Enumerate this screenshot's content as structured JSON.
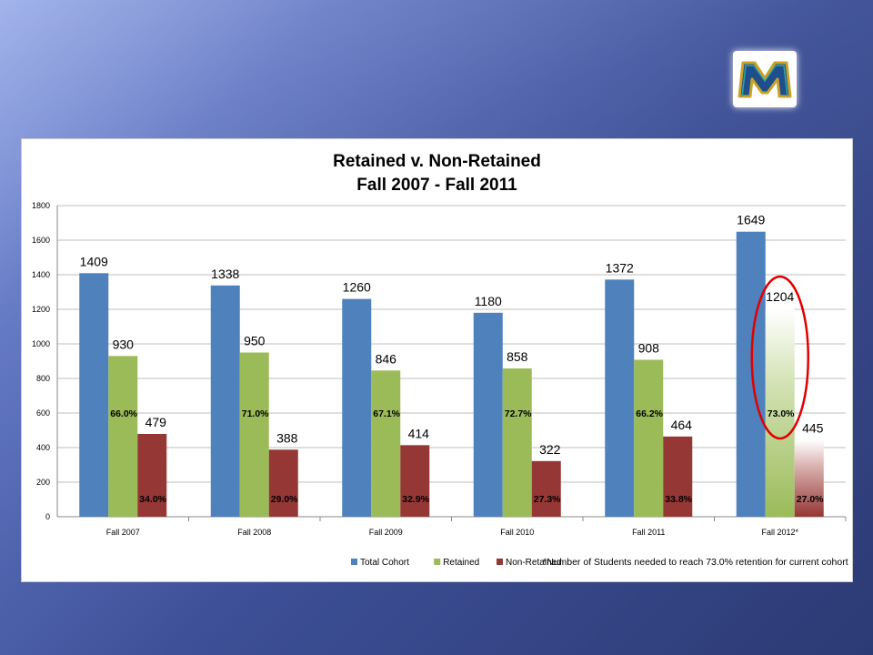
{
  "colors": {
    "total": "#4f81bd",
    "retained": "#9bbb59",
    "non_retained": "#953735",
    "highlight": "#e00000"
  },
  "logo": {
    "letter": "M",
    "icon": "school-logo-icon"
  },
  "chart_data": {
    "type": "bar",
    "title": "Retained v. Non-Retained",
    "subtitle": "Fall 2007 - Fall 2011",
    "categories": [
      "Fall 2007",
      "Fall 2008",
      "Fall 2009",
      "Fall 2010",
      "Fall 2011",
      "Fall 2012*"
    ],
    "ylim": [
      0,
      1800
    ],
    "yticks": [
      0,
      200,
      400,
      600,
      800,
      1000,
      1200,
      1400,
      1600,
      1800
    ],
    "grid": true,
    "legend_position": "bottom",
    "series": [
      {
        "name": "Total Cohort",
        "values": [
          1409,
          1338,
          1260,
          1180,
          1372,
          1649
        ]
      },
      {
        "name": "Retained",
        "values": [
          930,
          950,
          846,
          858,
          908,
          1204
        ]
      },
      {
        "name": "Non-Retained",
        "values": [
          479,
          388,
          414,
          322,
          464,
          445
        ]
      }
    ],
    "value_labels": {
      "Total Cohort": [
        "1409",
        "1338",
        "1260",
        "1180",
        "1372",
        "1649"
      ],
      "Retained": [
        "930",
        "950",
        "846",
        "858",
        "908",
        "1204"
      ],
      "Non-Retained": [
        "479",
        "388",
        "414",
        "322",
        "464",
        "445"
      ]
    },
    "retained_pct_labels": [
      "66.0%",
      "71.0%",
      "67.1%",
      "72.7%",
      "66.2%",
      "73.0%"
    ],
    "non_retained_pct_labels": [
      "34.0%",
      "29.0%",
      "32.9%",
      "27.3%",
      "33.8%",
      "27.0%"
    ],
    "projected_category": "Fall 2012*",
    "footnote": "*Number of Students needed to reach 73.0% retention for current cohort"
  }
}
